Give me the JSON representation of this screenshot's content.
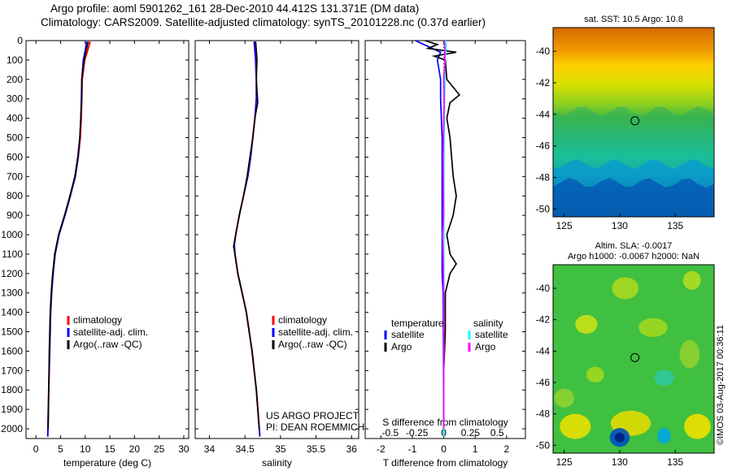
{
  "header": {
    "title_line1": "Argo profile: aoml 5901262_161 28-Dec-2010 44.412S 131.371E (DM data)",
    "title_line2": "Climatology: CARS2009. Satellite-adjusted climatology: synTS_20101228.nc (0.37d earlier)"
  },
  "credits": {
    "project": "US ARGO PROJECT",
    "pi": "PI: DEAN ROEMMICH",
    "imos": "©IMOS 03-Aug-2017 00:36:11"
  },
  "colors": {
    "climatology": "#ff0000",
    "satellite": "#0000ff",
    "argo": "#000000",
    "sal_satellite": "#00ffff",
    "sal_argo": "#ff00ff"
  },
  "chart_data": [
    {
      "type": "line",
      "xlabel": "temperature (deg C)",
      "ylabel": "",
      "xlim": [
        -2,
        31
      ],
      "ylim": [
        2050,
        0
      ],
      "xticks": [
        0,
        5,
        10,
        15,
        20,
        25,
        30
      ],
      "yticks": [
        0,
        100,
        200,
        300,
        400,
        500,
        600,
        700,
        800,
        900,
        1000,
        1100,
        1200,
        1300,
        1400,
        1500,
        1600,
        1700,
        1800,
        1900,
        2000
      ],
      "legend": [
        "climatology",
        "satellite-adj. clim.",
        "Argo(..raw -QC)"
      ],
      "series": [
        {
          "name": "climatology",
          "depth": [
            5,
            50,
            100,
            200,
            300,
            400,
            500,
            600,
            700,
            800,
            900,
            1000,
            1100,
            1200,
            1300,
            1400,
            1600,
            1800,
            2040
          ],
          "values": [
            11.0,
            10.5,
            9.9,
            9.4,
            9.3,
            9.2,
            9.0,
            8.6,
            8.0,
            7.0,
            5.9,
            4.7,
            3.9,
            3.5,
            3.2,
            3.0,
            2.8,
            2.6,
            2.4
          ]
        },
        {
          "name": "satellite-adj. clim.",
          "depth": [
            5,
            50,
            100,
            200,
            300,
            400,
            500,
            600,
            700,
            800,
            900,
            1000,
            1100,
            1200,
            1300,
            1400,
            1600,
            1800,
            2040
          ],
          "values": [
            10.3,
            10.0,
            9.6,
            9.3,
            9.2,
            9.1,
            8.9,
            8.6,
            8.0,
            7.0,
            5.9,
            4.7,
            3.9,
            3.5,
            3.2,
            3.0,
            2.8,
            2.6,
            2.4
          ]
        },
        {
          "name": "Argo(..raw -QC)",
          "depth": [
            5,
            50,
            100,
            200,
            300,
            400,
            500,
            600,
            700,
            800,
            900,
            1000,
            1100,
            1200,
            1300,
            1400,
            1600,
            1800,
            2000
          ],
          "values": [
            10.6,
            10.2,
            9.8,
            9.3,
            9.3,
            9.1,
            8.9,
            8.5,
            7.9,
            6.9,
            5.8,
            4.6,
            3.8,
            3.4,
            3.1,
            2.9,
            2.7,
            2.6,
            2.5
          ]
        }
      ]
    },
    {
      "type": "line",
      "xlabel": "salinity",
      "ylabel": "",
      "xlim": [
        33.8,
        36.1
      ],
      "ylim": [
        2050,
        0
      ],
      "xticks": [
        34,
        34.5,
        35,
        35.5,
        36
      ],
      "legend": [
        "climatology",
        "satellite-adj. clim.",
        "Argo(..raw -QC)"
      ],
      "series": [
        {
          "name": "climatology",
          "depth": [
            5,
            50,
            100,
            200,
            300,
            400,
            500,
            600,
            700,
            800,
            900,
            1000,
            1050,
            1100,
            1200,
            1300,
            1400,
            1600,
            1800,
            2040
          ],
          "values": [
            34.63,
            34.64,
            34.65,
            34.66,
            34.66,
            34.64,
            34.61,
            34.58,
            34.54,
            34.48,
            34.42,
            34.37,
            34.35,
            34.36,
            34.4,
            34.46,
            34.52,
            34.6,
            34.66,
            34.71
          ]
        },
        {
          "name": "satellite-adj. clim.",
          "depth": [
            5,
            50,
            100,
            200,
            300,
            400,
            500,
            600,
            700,
            800,
            900,
            1000,
            1050,
            1100,
            1200,
            1300,
            1400,
            1600,
            1800,
            2040
          ],
          "values": [
            34.63,
            34.64,
            34.65,
            34.66,
            34.66,
            34.64,
            34.61,
            34.58,
            34.54,
            34.48,
            34.42,
            34.37,
            34.35,
            34.36,
            34.4,
            34.46,
            34.52,
            34.6,
            34.66,
            34.71
          ]
        },
        {
          "name": "Argo(..raw -QC)",
          "depth": [
            5,
            50,
            100,
            200,
            320,
            400,
            500,
            600,
            700,
            800,
            900,
            1000,
            1060,
            1100,
            1200,
            1300,
            1400,
            1600,
            1800,
            2000
          ],
          "values": [
            34.65,
            34.66,
            34.67,
            34.66,
            34.68,
            34.64,
            34.61,
            34.57,
            34.53,
            34.48,
            34.42,
            34.37,
            34.34,
            34.36,
            34.4,
            34.46,
            34.52,
            34.6,
            34.66,
            34.7
          ]
        }
      ]
    },
    {
      "type": "line",
      "xlabel": "T difference from climatology",
      "xlabel_top": "S difference from climatology",
      "xlim": [
        -2.5,
        2.6
      ],
      "ylim": [
        2050,
        0
      ],
      "xticks": [
        -2,
        -1,
        0,
        1,
        2
      ],
      "xticks_top": [
        -0.5,
        -0.25,
        0,
        0.25,
        0.5
      ],
      "legend_titles": [
        "temperature",
        "salinity"
      ],
      "legend": [
        "satellite",
        "Argo",
        "satellite",
        "Argo"
      ],
      "series": [
        {
          "name": "satellite",
          "group": "temperature",
          "depth": [
            0,
            30,
            60,
            100,
            200,
            300,
            500,
            800,
            1000,
            1200,
            1300,
            2040
          ],
          "values": [
            -0.9,
            -0.5,
            -0.1,
            -0.2,
            -0.1,
            -0.1,
            -0.05,
            -0.05,
            -0.05,
            -0.05,
            -0.02,
            0
          ]
        },
        {
          "name": "Argo",
          "group": "temperature",
          "depth": [
            0,
            20,
            40,
            60,
            80,
            100,
            200,
            280,
            320,
            400,
            500,
            700,
            800,
            900,
            1000,
            1100,
            1150,
            1200,
            1300,
            1500,
            1700,
            2000
          ],
          "values": [
            -0.6,
            -0.2,
            -0.5,
            0.4,
            -0.3,
            0.05,
            0.1,
            0.5,
            0.2,
            0.1,
            0.2,
            0.3,
            0.4,
            0.3,
            0.1,
            0.2,
            0.4,
            0.2,
            0.05,
            0.05,
            0,
            0
          ]
        },
        {
          "name": "satellite",
          "group": "salinity",
          "depth": [
            0,
            50,
            100,
            200,
            400,
            700,
            1000,
            1300,
            1600,
            2040
          ],
          "values": [
            0.02,
            0.02,
            0.01,
            0.01,
            0.005,
            0,
            0,
            0,
            0,
            0
          ]
        },
        {
          "name": "Argo",
          "group": "salinity",
          "depth": [
            0,
            50,
            120,
            200,
            320,
            400,
            600,
            900,
            1000,
            1100,
            1300,
            1600,
            2000
          ],
          "values": [
            0.005,
            0.01,
            0.01,
            0,
            0.005,
            0,
            -0.005,
            0,
            -0.01,
            -0.005,
            0,
            0,
            0
          ]
        }
      ]
    },
    {
      "type": "heatmap",
      "title": "sat. SST: 10.5 Argo: 10.8",
      "xlim": [
        124,
        138.5
      ],
      "ylim": [
        -50.5,
        -38.5
      ],
      "xticks": [
        125,
        130,
        135
      ],
      "yticks": [
        -40,
        -42,
        -44,
        -46,
        -48,
        -50
      ],
      "profile_location": [
        131.371,
        -44.412
      ]
    },
    {
      "type": "heatmap",
      "title": "Altim. SLA: -0.0017",
      "subtitle": "Argo h1000: -0.0067 h2000: NaN",
      "xlim": [
        124,
        138.5
      ],
      "ylim": [
        -50.5,
        -38.5
      ],
      "xticks": [
        125,
        130,
        135
      ],
      "yticks": [
        -40,
        -42,
        -44,
        -46,
        -48,
        -50
      ],
      "profile_location": [
        131.371,
        -44.412
      ]
    }
  ]
}
